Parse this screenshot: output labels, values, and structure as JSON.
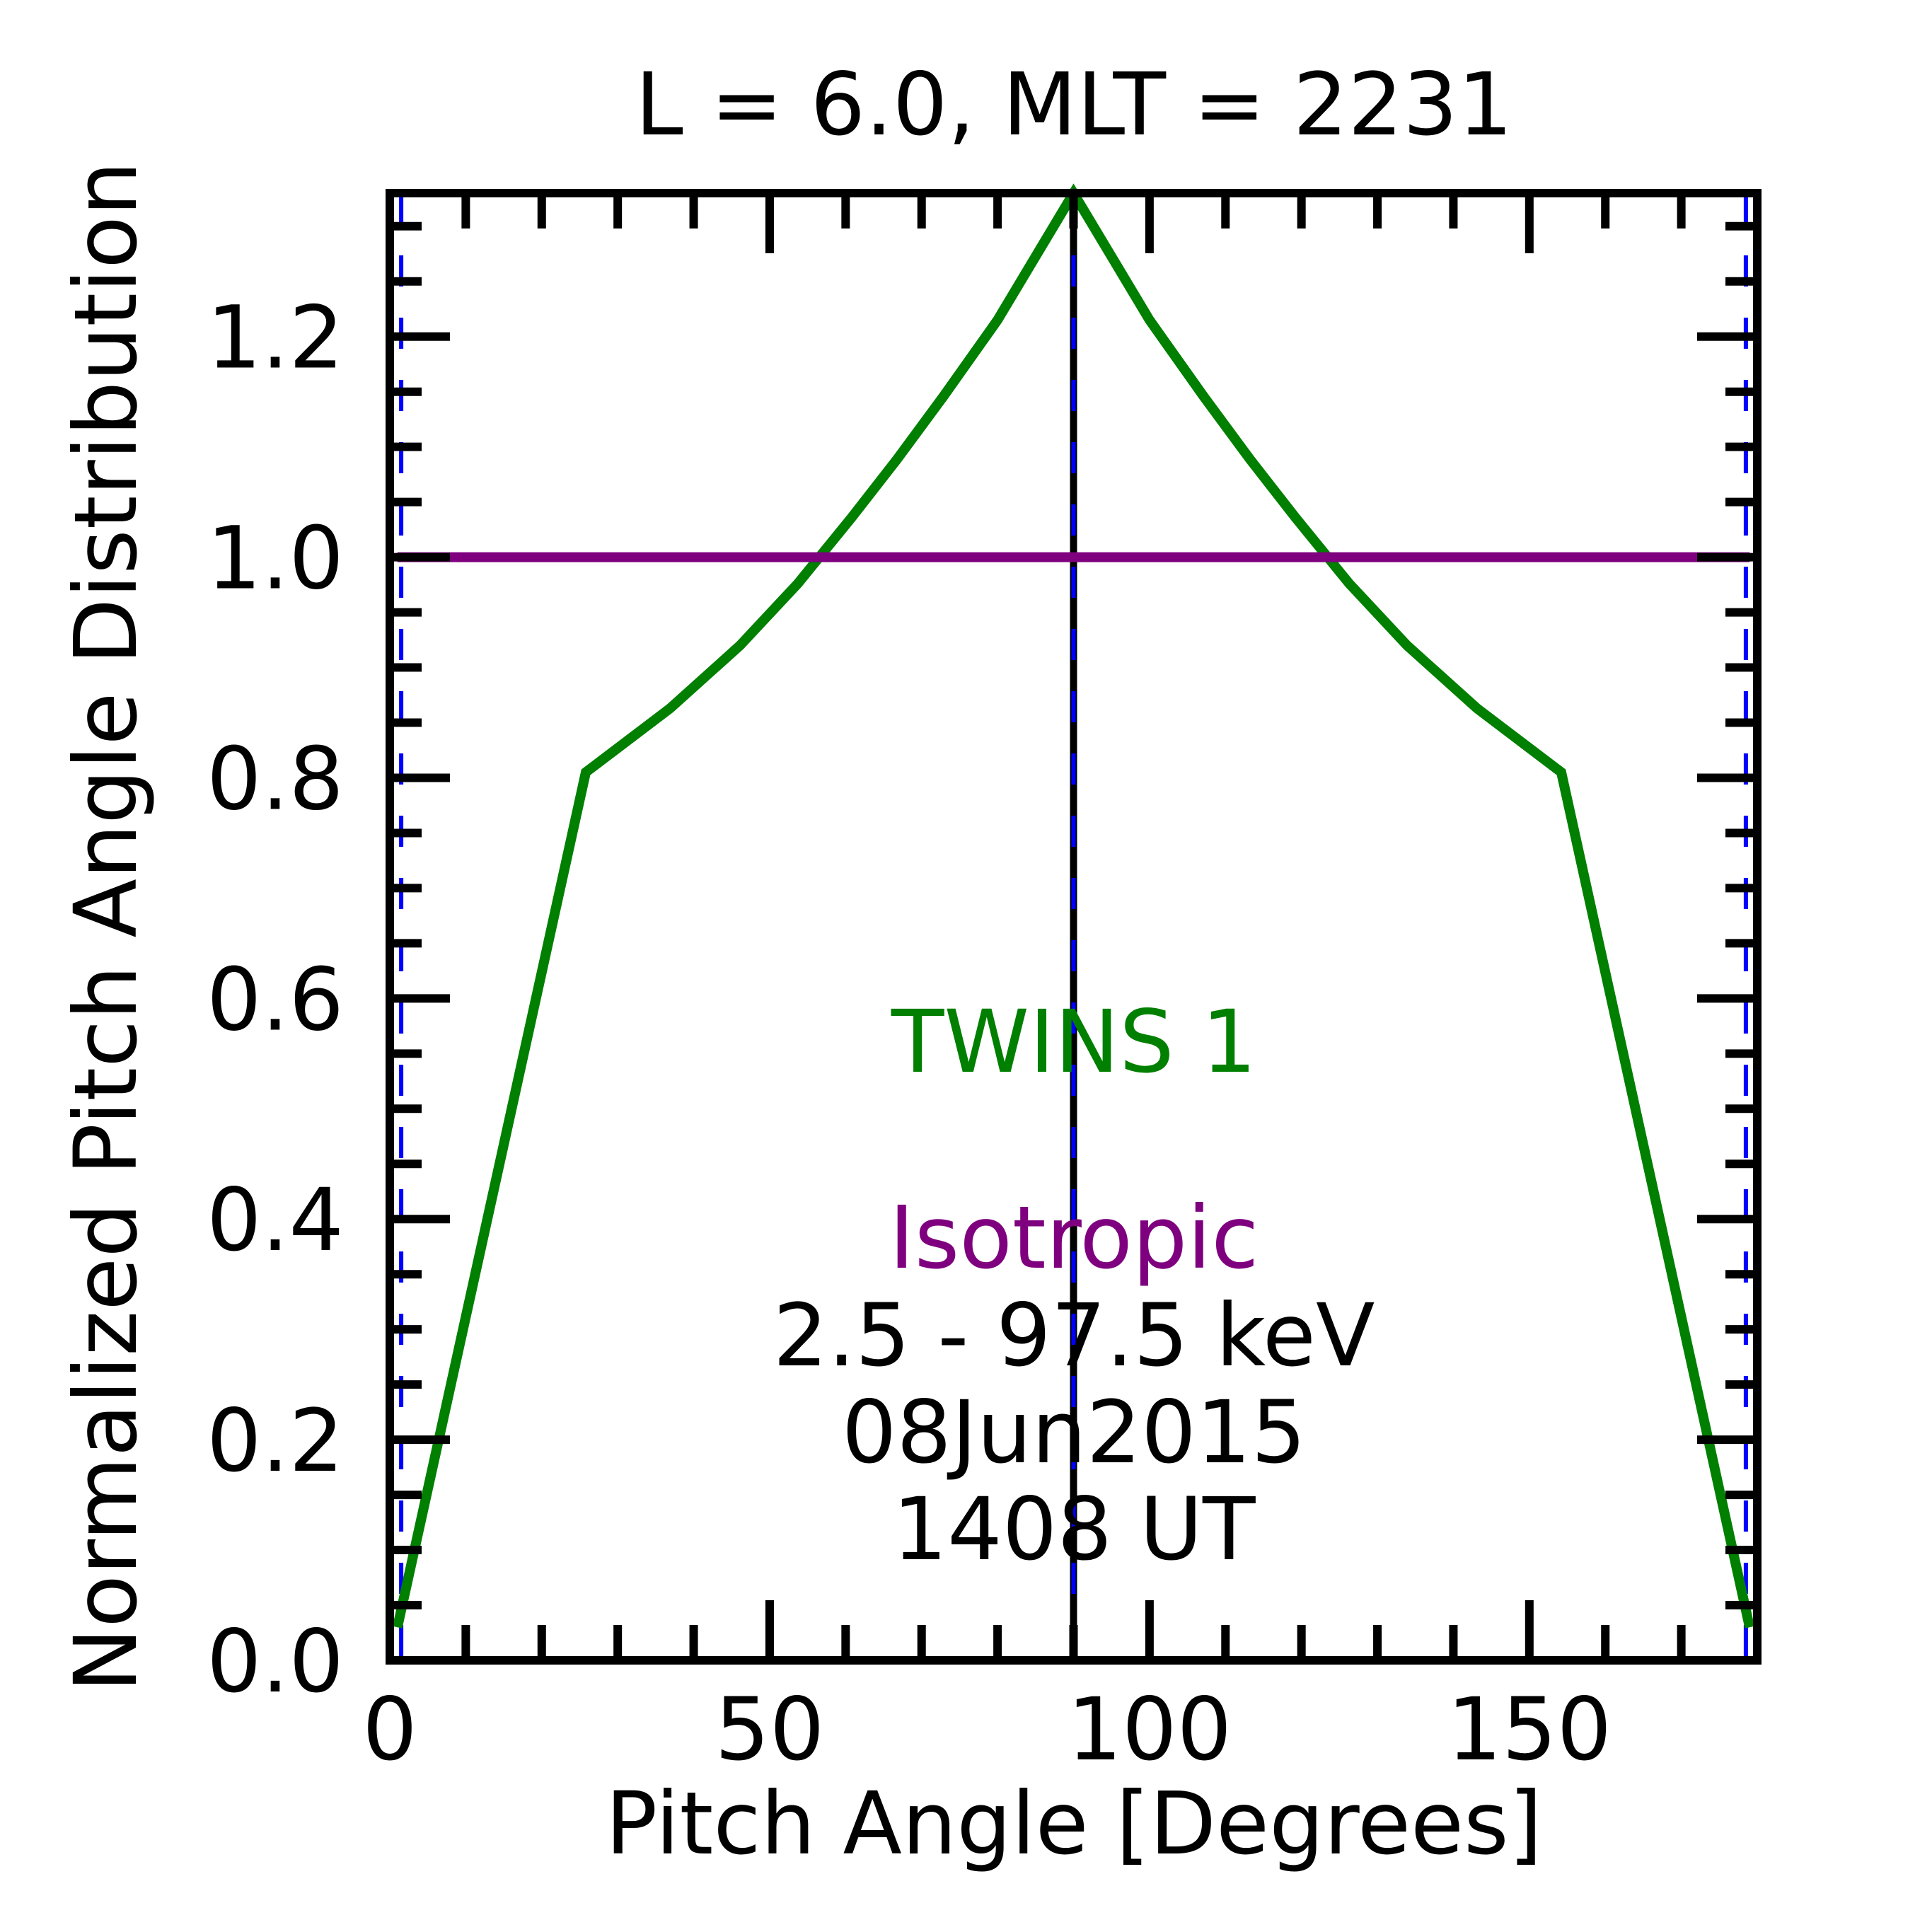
{
  "chart_data": {
    "type": "line",
    "title": "L =  6.0, MLT = 2231",
    "xlabel": "Pitch Angle [Degrees]",
    "ylabel": "Normalized Pitch Angle Distribution",
    "xlim": [
      0,
      180
    ],
    "ylim": [
      0,
      1.33
    ],
    "x_ticks": [
      0,
      50,
      100,
      150
    ],
    "x_tick_labels": [
      "0",
      "50",
      "100",
      "150"
    ],
    "y_ticks": [
      0,
      0.2,
      0.4,
      0.6,
      0.8,
      1.0,
      1.2
    ],
    "y_tick_labels": [
      "0.0",
      "0.2",
      "0.4",
      "0.6",
      "0.8",
      "1.0",
      "1.2"
    ],
    "grid": false,
    "series": [
      {
        "name": "TWINS 1",
        "color": "#007f00",
        "x": [
          1,
          25.8,
          36.9,
          46.1,
          53.7,
          60.8,
          66.8,
          72.9,
          80,
          90,
          100,
          107.1,
          113.2,
          119.2,
          126.3,
          133.9,
          143.1,
          154.2,
          179
        ],
        "y": [
          0.03,
          0.805,
          0.863,
          0.92,
          0.976,
          1.036,
          1.089,
          1.146,
          1.215,
          1.33,
          1.215,
          1.146,
          1.089,
          1.036,
          0.976,
          0.92,
          0.863,
          0.805,
          0.03
        ]
      },
      {
        "name": "Isotropic",
        "color": "#7f007f",
        "x": [
          1,
          179
        ],
        "y": [
          1.0,
          1.0
        ]
      }
    ],
    "vertical_lines": [
      {
        "x": 1.5,
        "color": "#0000ff",
        "style": "dashed"
      },
      {
        "x": 90,
        "color": "#000000",
        "style": "solid"
      },
      {
        "x": 90,
        "color": "#0000ff",
        "style": "dashed"
      },
      {
        "x": 178.5,
        "color": "#0000ff",
        "style": "dashed"
      }
    ],
    "annotations": {
      "instrument": "TWINS 1",
      "model": "Isotropic",
      "energy": "2.5 - 97.5 keV",
      "date": "08Jun2015",
      "time": "1408 UT"
    }
  }
}
